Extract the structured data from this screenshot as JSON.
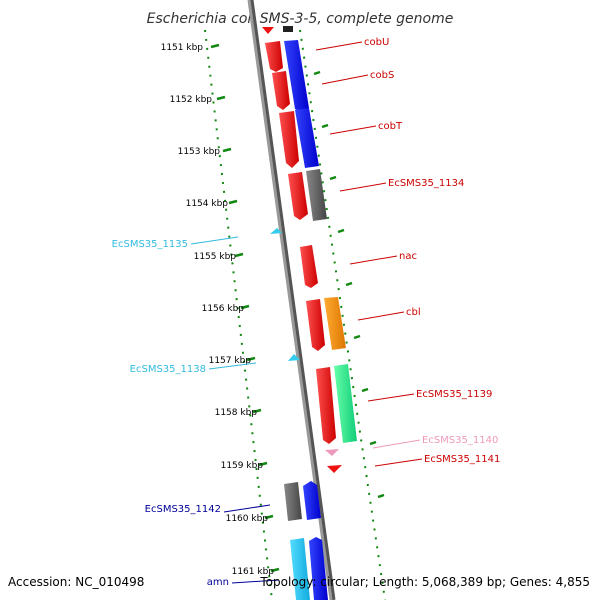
{
  "title": "Escherichia coli SMS-3-5, complete genome",
  "footer": {
    "accession": "Accession: NC_010498",
    "info": "Topology: circular; Length: 5,068,389 bp; Genes: 4,855"
  },
  "colors": {
    "red_gene": "#ee1111",
    "blue_gene": "#0a0af0",
    "gray_gene": "#666666",
    "orange_gene": "#ee8800",
    "green_gene": "#22ee88",
    "cyan_gene": "#33ccee",
    "pink_gene": "#ee99bb",
    "scale_tick": "#118811",
    "backbone": "#888888"
  },
  "scale": {
    "start_kbp": 1151,
    "end_kbp": 1161,
    "tick_labels": [
      "1151 kbp",
      "1152 kbp",
      "1153 kbp",
      "1154 kbp",
      "1155 kbp",
      "1156 kbp",
      "1157 kbp",
      "1158 kbp",
      "1159 kbp",
      "1160 kbp",
      "1161 kbp"
    ]
  },
  "gene_labels": [
    {
      "text": "cobU",
      "color": "#cc0000",
      "side": "right"
    },
    {
      "text": "cobS",
      "color": "#cc0000",
      "side": "right"
    },
    {
      "text": "cobT",
      "color": "#cc0000",
      "side": "right"
    },
    {
      "text": "EcSMS35_1134",
      "color": "#cc0000",
      "side": "right"
    },
    {
      "text": "EcSMS35_1135",
      "color": "#33bbdd",
      "side": "left"
    },
    {
      "text": "nac",
      "color": "#cc0000",
      "side": "right"
    },
    {
      "text": "cbl",
      "color": "#cc0000",
      "side": "right"
    },
    {
      "text": "EcSMS35_1138",
      "color": "#33bbdd",
      "side": "left"
    },
    {
      "text": "EcSMS35_1139",
      "color": "#cc0000",
      "side": "right"
    },
    {
      "text": "EcSMS35_1140",
      "color": "#ee99bb",
      "side": "right"
    },
    {
      "text": "EcSMS35_1141",
      "color": "#cc0000",
      "side": "right"
    },
    {
      "text": "EcSMS35_1142",
      "color": "#000099",
      "side": "left"
    },
    {
      "text": "amn",
      "color": "#000099",
      "side": "left"
    }
  ]
}
